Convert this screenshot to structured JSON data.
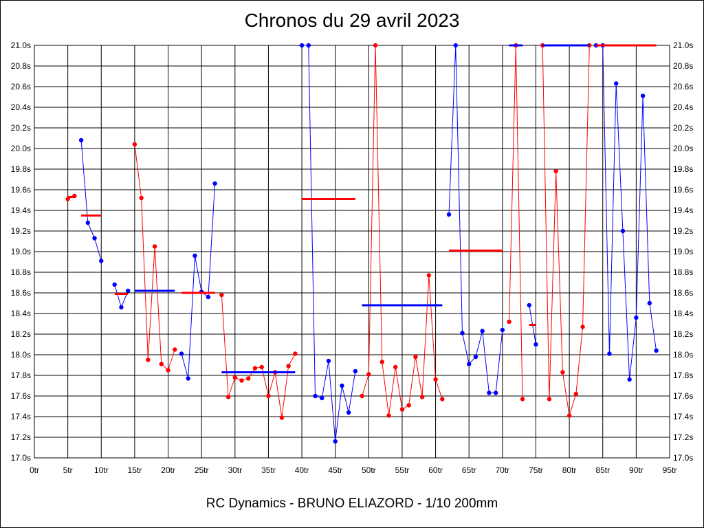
{
  "title": "Chronos du 29 avril 2023",
  "footer": "RC Dynamics - BRUNO ELIAZORD - 1/10 200mm",
  "colors": {
    "red": "#ff0000",
    "blue": "#0000ff",
    "grid": "#000000"
  },
  "chart_data": {
    "type": "line",
    "xlim": [
      0,
      95
    ],
    "ylim": [
      17.0,
      21.0
    ],
    "x_ticks": [
      0,
      5,
      10,
      15,
      20,
      25,
      30,
      35,
      40,
      45,
      50,
      55,
      60,
      65,
      70,
      75,
      80,
      85,
      90,
      95
    ],
    "x_tick_labels": [
      "0tr",
      "5tr",
      "10tr",
      "15tr",
      "20tr",
      "25tr",
      "30tr",
      "35tr",
      "40tr",
      "45tr",
      "50tr",
      "55tr",
      "60tr",
      "65tr",
      "70tr",
      "75tr",
      "80tr",
      "85tr",
      "90tr",
      "95tr"
    ],
    "y_ticks": [
      17.0,
      17.2,
      17.4,
      17.6,
      17.8,
      18.0,
      18.2,
      18.4,
      18.6,
      18.8,
      19.0,
      19.2,
      19.4,
      19.6,
      19.8,
      20.0,
      20.2,
      20.4,
      20.6,
      20.8,
      21.0
    ],
    "y_tick_labels": [
      "17.0s",
      "17.2s",
      "17.4s",
      "17.6s",
      "17.8s",
      "18.0s",
      "18.2s",
      "18.4s",
      "18.6s",
      "18.8s",
      "19.0s",
      "19.2s",
      "19.4s",
      "19.6s",
      "19.8s",
      "20.0s",
      "20.2s",
      "20.4s",
      "20.6s",
      "20.8s",
      "21.0s"
    ],
    "grid": true,
    "segments": [
      {
        "color": "red",
        "points": [
          [
            5,
            19.51
          ],
          [
            6,
            19.54
          ]
        ],
        "avg": 19.53
      },
      {
        "color": "blue",
        "points": [
          [
            7,
            20.08
          ],
          [
            8,
            19.28
          ],
          [
            9,
            19.13
          ],
          [
            10,
            18.91
          ]
        ],
        "avg": 19.35,
        "avg_color": "red"
      },
      {
        "color": "blue",
        "points": [
          [
            12,
            18.68
          ],
          [
            13,
            18.46
          ],
          [
            14,
            18.62
          ]
        ],
        "avg": 18.59,
        "avg_color": "red"
      },
      {
        "color": "red",
        "points": [
          [
            15,
            20.04
          ],
          [
            16,
            19.52
          ],
          [
            17,
            17.95
          ],
          [
            18,
            19.05
          ],
          [
            19,
            17.91
          ],
          [
            20,
            17.85
          ],
          [
            21,
            18.05
          ]
        ],
        "avg": 18.62,
        "avg_color": "blue"
      },
      {
        "color": "blue",
        "points": [
          [
            22,
            18.01
          ],
          [
            23,
            17.77
          ],
          [
            24,
            18.96
          ],
          [
            25,
            18.61
          ],
          [
            26,
            18.56
          ],
          [
            27,
            19.66
          ]
        ],
        "avg": 18.6,
        "avg_color": "red"
      },
      {
        "color": "red",
        "points": [
          [
            28,
            18.58
          ],
          [
            29,
            17.59
          ],
          [
            30,
            17.78
          ],
          [
            31,
            17.75
          ],
          [
            32,
            17.77
          ],
          [
            33,
            17.87
          ],
          [
            34,
            17.88
          ],
          [
            35,
            17.6
          ],
          [
            36,
            17.83
          ],
          [
            37,
            17.39
          ],
          [
            38,
            17.89
          ],
          [
            39,
            18.01
          ]
        ],
        "avg": 17.83,
        "avg_color": "blue"
      },
      {
        "color": "blue",
        "points": [
          [
            40,
            21.0
          ],
          [
            41,
            21.0
          ],
          [
            42,
            17.6
          ],
          [
            43,
            17.58
          ],
          [
            44,
            17.94
          ],
          [
            45,
            17.16
          ],
          [
            46,
            17.7
          ],
          [
            47,
            17.44
          ],
          [
            48,
            17.84
          ]
        ],
        "avg": 19.51,
        "avg_color": "red"
      },
      {
        "color": "red",
        "points": [
          [
            49,
            17.6
          ],
          [
            50,
            17.81
          ],
          [
            51,
            21.0
          ],
          [
            52,
            17.93
          ],
          [
            53,
            17.41
          ],
          [
            54,
            17.88
          ],
          [
            55,
            17.47
          ],
          [
            56,
            17.51
          ],
          [
            57,
            17.98
          ],
          [
            58,
            17.59
          ],
          [
            59,
            18.77
          ],
          [
            60,
            17.76
          ],
          [
            61,
            17.57
          ]
        ],
        "avg": 18.48,
        "avg_color": "blue"
      },
      {
        "color": "blue",
        "points": [
          [
            62,
            19.36
          ],
          [
            63,
            21.0
          ],
          [
            64,
            18.21
          ],
          [
            65,
            17.91
          ],
          [
            66,
            17.98
          ],
          [
            67,
            18.23
          ],
          [
            68,
            17.63
          ],
          [
            69,
            17.63
          ],
          [
            70,
            18.24
          ]
        ],
        "avg": 19.01,
        "avg_color": "red"
      },
      {
        "color": "red",
        "points": [
          [
            71,
            18.32
          ],
          [
            72,
            21.0
          ],
          [
            73,
            17.57
          ]
        ],
        "avg": 21.0,
        "avg_color": "blue"
      },
      {
        "color": "blue",
        "points": [
          [
            74,
            18.48
          ],
          [
            75,
            18.1
          ]
        ],
        "avg": 18.29,
        "avg_color": "red"
      },
      {
        "color": "red",
        "points": [
          [
            76,
            21.0
          ],
          [
            77,
            17.57
          ],
          [
            78,
            19.78
          ],
          [
            79,
            17.83
          ],
          [
            80,
            17.41
          ],
          [
            81,
            17.62
          ],
          [
            82,
            18.27
          ],
          [
            83,
            21.0
          ]
        ],
        "avg": 21.0,
        "avg_color": "blue"
      },
      {
        "color": "blue",
        "points": [
          [
            84,
            21.0
          ],
          [
            85,
            21.0
          ],
          [
            86,
            18.01
          ],
          [
            87,
            20.63
          ],
          [
            88,
            19.2
          ],
          [
            89,
            17.76
          ],
          [
            90,
            18.36
          ],
          [
            91,
            20.51
          ],
          [
            92,
            18.5
          ],
          [
            93,
            18.04
          ]
        ],
        "avg": 21.0,
        "avg_color": "red"
      }
    ],
    "avg_ranges": [
      [
        5,
        6.2
      ],
      [
        7,
        10
      ],
      [
        12,
        14
      ],
      [
        15,
        21
      ],
      [
        22,
        27
      ],
      [
        28,
        39
      ],
      [
        40,
        48
      ],
      [
        49,
        61
      ],
      [
        62,
        70
      ],
      [
        71,
        73
      ],
      [
        74,
        75
      ],
      [
        76,
        83
      ],
      [
        84,
        93
      ]
    ]
  }
}
